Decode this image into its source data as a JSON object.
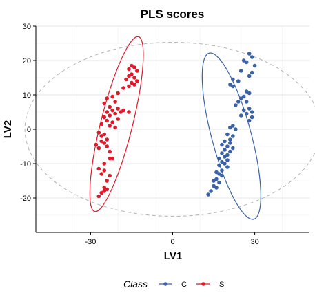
{
  "chart_data": {
    "type": "scatter",
    "title": "PLS scores",
    "xlabel": "LV1",
    "ylabel": "LV2",
    "xlim": [
      -50,
      50
    ],
    "ylim": [
      -30,
      30
    ],
    "xticks": [
      -30,
      0,
      30
    ],
    "yticks": [
      -20,
      -10,
      0,
      10,
      20,
      30
    ],
    "grid": true,
    "legend": {
      "title": "Class",
      "position": "bottom"
    },
    "hotelling_ellipse": {
      "cx": 0,
      "cy": 0,
      "rx": 54,
      "ry": 25.3,
      "style": "dashed",
      "color": "#b3b3b3"
    },
    "series": [
      {
        "name": "C",
        "color": "#3a62a8",
        "ellipse": {
          "cx": 21.5,
          "cy": -2,
          "rx": 7.2,
          "ry": 25,
          "angle": -15
        },
        "points": [
          [
            28,
            22
          ],
          [
            29,
            21
          ],
          [
            26,
            20
          ],
          [
            27,
            19.5
          ],
          [
            30,
            18.5
          ],
          [
            25,
            17
          ],
          [
            29,
            16.5
          ],
          [
            28,
            15.5
          ],
          [
            24,
            14
          ],
          [
            22,
            14.5
          ],
          [
            21,
            13
          ],
          [
            22,
            12.5
          ],
          [
            27,
            11
          ],
          [
            28,
            10.5
          ],
          [
            26,
            9.5
          ],
          [
            25,
            9
          ],
          [
            24,
            8
          ],
          [
            27,
            8
          ],
          [
            23,
            7
          ],
          [
            28,
            6
          ],
          [
            26,
            5.5
          ],
          [
            29,
            5
          ],
          [
            27,
            4.5
          ],
          [
            25,
            4
          ],
          [
            29,
            3.5
          ],
          [
            28,
            2.5
          ],
          [
            22,
            1
          ],
          [
            21,
            0.5
          ],
          [
            23,
            0
          ],
          [
            20,
            -1.5
          ],
          [
            22,
            -2
          ],
          [
            21,
            -3
          ],
          [
            19,
            -3.5
          ],
          [
            21,
            -4
          ],
          [
            18,
            -4.5
          ],
          [
            20,
            -5
          ],
          [
            22,
            -5.5
          ],
          [
            19,
            -6
          ],
          [
            21,
            -6.5
          ],
          [
            18,
            -7
          ],
          [
            20,
            -7.5
          ],
          [
            19,
            -8
          ],
          [
            17,
            -8.5
          ],
          [
            20,
            -9
          ],
          [
            18,
            -9.5
          ],
          [
            19,
            -10
          ],
          [
            17,
            -10.5
          ],
          [
            20,
            -11
          ],
          [
            18,
            -12
          ],
          [
            16,
            -12.5
          ],
          [
            17,
            -13
          ],
          [
            18,
            -13.5
          ],
          [
            16,
            -14.5
          ],
          [
            15,
            -15
          ],
          [
            17,
            -15.5
          ],
          [
            15,
            -16.5
          ],
          [
            16,
            -17
          ],
          [
            14,
            -18
          ],
          [
            13,
            -19
          ]
        ]
      },
      {
        "name": "S",
        "color": "#e2182b",
        "ellipse": {
          "cx": -20.5,
          "cy": 1.5,
          "rx": 5.8,
          "ry": 26.2,
          "angle": 14
        },
        "points": [
          [
            -15,
            18.5
          ],
          [
            -14,
            18
          ],
          [
            -16,
            17.5
          ],
          [
            -13,
            17
          ],
          [
            -15,
            16
          ],
          [
            -16,
            15.5
          ],
          [
            -14,
            15
          ],
          [
            -17,
            14.5
          ],
          [
            -13,
            14
          ],
          [
            -15,
            13.5
          ],
          [
            -14,
            13
          ],
          [
            -16,
            12.5
          ],
          [
            -18,
            12
          ],
          [
            -20,
            10.5
          ],
          [
            -22,
            9.5
          ],
          [
            -24,
            9
          ],
          [
            -21,
            8
          ],
          [
            -25,
            7.5
          ],
          [
            -23,
            6.5
          ],
          [
            -20,
            6
          ],
          [
            -22,
            5.5
          ],
          [
            -24,
            5
          ],
          [
            -18,
            5.5
          ],
          [
            -16,
            5
          ],
          [
            -19,
            5
          ],
          [
            -21,
            4.5
          ],
          [
            -23,
            4
          ],
          [
            -25,
            3.5
          ],
          [
            -20,
            3
          ],
          [
            -24,
            2.5
          ],
          [
            -22,
            2
          ],
          [
            -26,
            1.5
          ],
          [
            -23,
            1
          ],
          [
            -21,
            0.5
          ],
          [
            -27,
            -1
          ],
          [
            -25,
            -1.5
          ],
          [
            -26,
            -2
          ],
          [
            -24,
            -3
          ],
          [
            -26,
            -3.5
          ],
          [
            -25,
            -4
          ],
          [
            -28,
            -4.5
          ],
          [
            -24,
            -5
          ],
          [
            -27,
            -5.5
          ],
          [
            -23,
            -6.5
          ],
          [
            -23,
            -8.5
          ],
          [
            -22,
            -8.5
          ],
          [
            -25,
            -10
          ],
          [
            -27,
            -11.5
          ],
          [
            -25,
            -12
          ],
          [
            -26,
            -13
          ],
          [
            -23,
            -13.5
          ],
          [
            -24,
            -15
          ],
          [
            -25,
            -17
          ],
          [
            -24,
            -17.5
          ],
          [
            -25,
            -18
          ],
          [
            -26,
            -18.5
          ],
          [
            -27,
            -19.5
          ]
        ]
      }
    ]
  }
}
